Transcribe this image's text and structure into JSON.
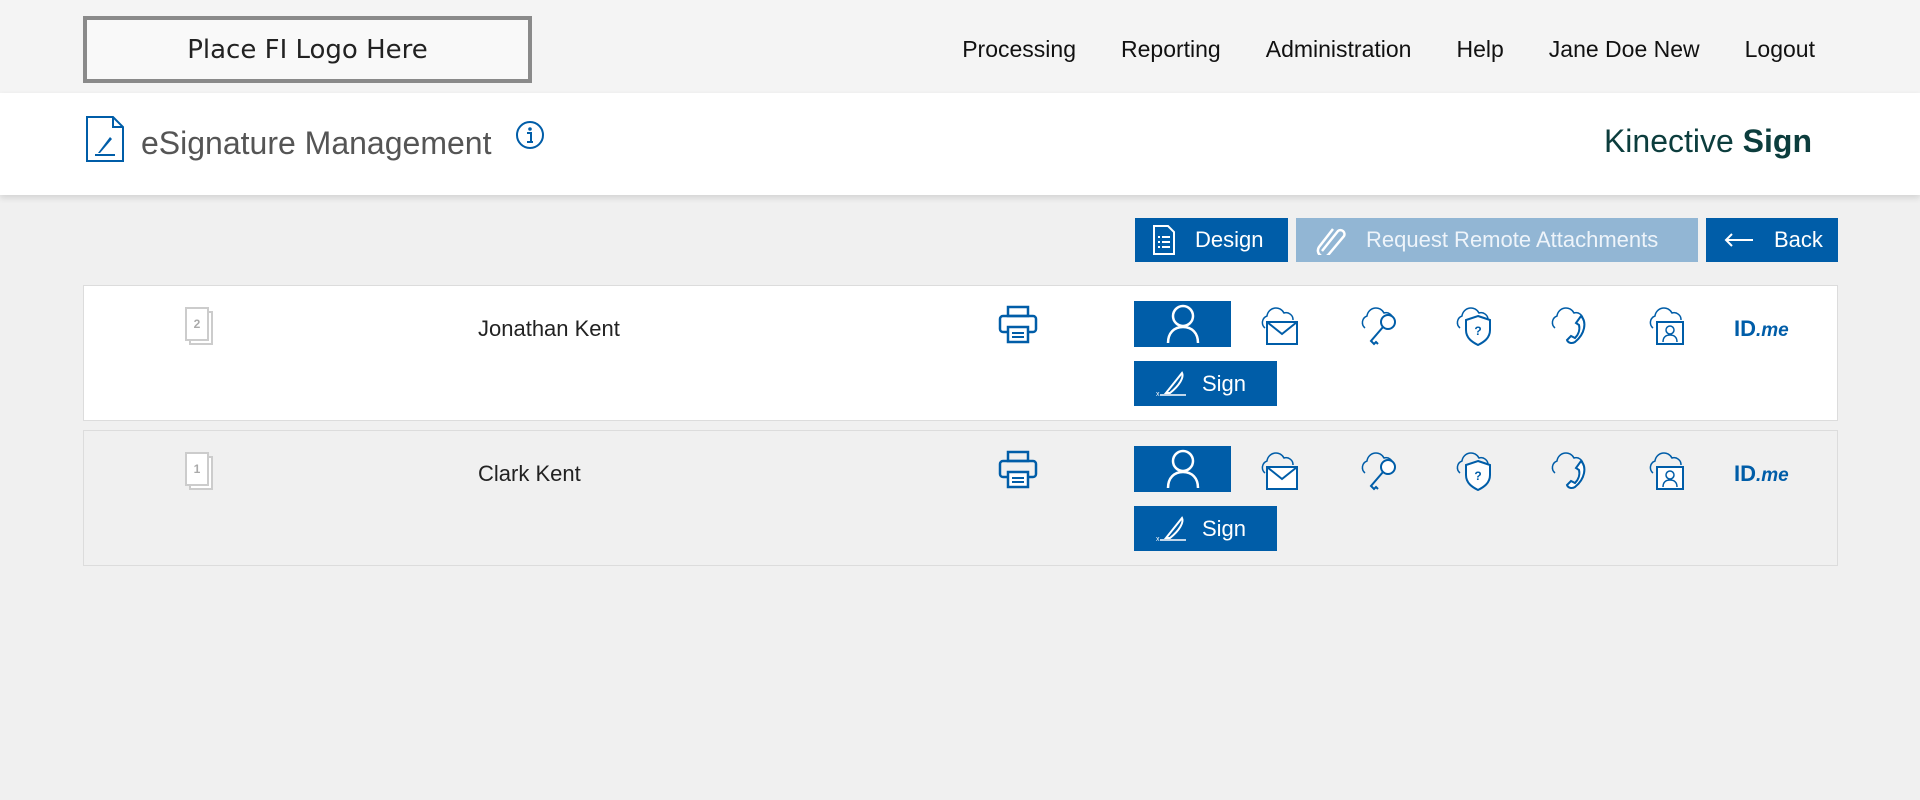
{
  "header": {
    "logo_text": "Place FI Logo Here",
    "nav": [
      "Processing",
      "Reporting",
      "Administration",
      "Help",
      "Jane Doe New",
      "Logout"
    ]
  },
  "titlebar": {
    "title": "eSignature Management",
    "brand_light": "Kinective",
    "brand_bold": "Sign"
  },
  "toolbar": {
    "design": "Design",
    "request": "Request Remote Attachments",
    "back": "Back"
  },
  "signers": [
    {
      "page_count": "2",
      "name": "Jonathan Kent",
      "sign": "Sign",
      "idme": "ID",
      "idme_suffix": ".me"
    },
    {
      "page_count": "1",
      "name": "Clark Kent",
      "sign": "Sign",
      "idme": "ID",
      "idme_suffix": ".me"
    }
  ],
  "colors": {
    "primary": "#005da8",
    "disabled": "#92b6d4",
    "brand": "#0c3d3d"
  }
}
